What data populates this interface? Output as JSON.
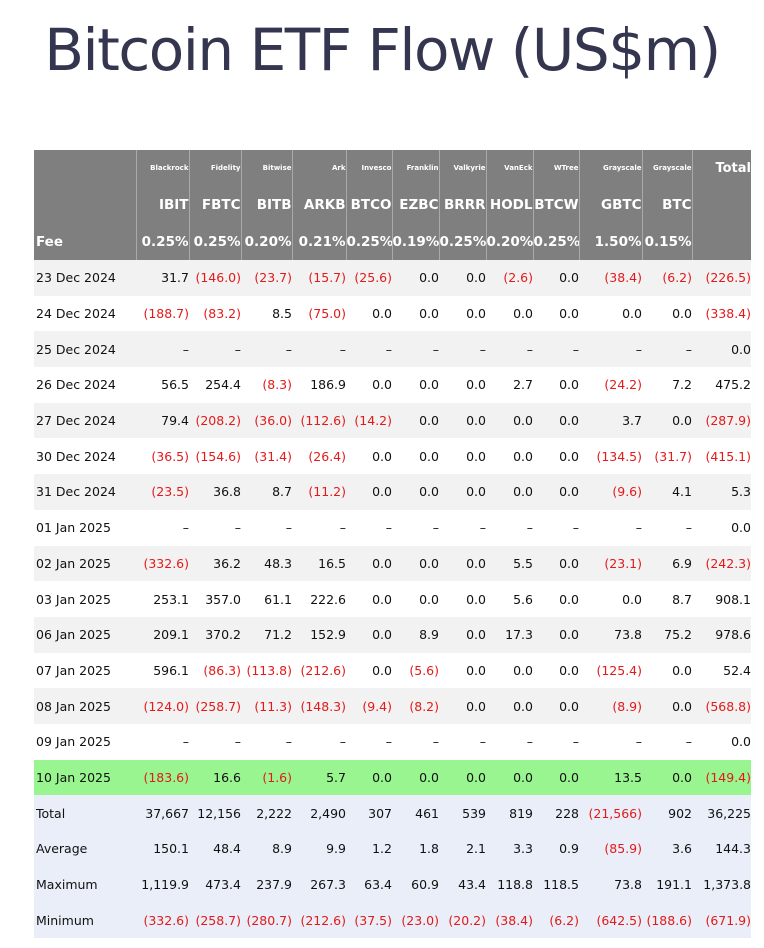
{
  "title": "Bitcoin ETF Flow (US$m)",
  "header": {
    "issuers": [
      "Blackrock",
      "Fidelity",
      "Bitwise",
      "Ark",
      "Invesco",
      "Franklin",
      "Valkyrie",
      "VanEck",
      "WTree",
      "Grayscale",
      "Grayscale"
    ],
    "total_label": "Total",
    "tickers": [
      "IBIT",
      "FBTC",
      "BITB",
      "ARKB",
      "BTCO",
      "EZBC",
      "BRRR",
      "HODL",
      "BTCW",
      "GBTC",
      "BTC"
    ],
    "fee_label": "Fee",
    "fees": [
      "0.25%",
      "0.25%",
      "0.20%",
      "0.21%",
      "0.25%",
      "0.19%",
      "0.25%",
      "0.20%",
      "0.25%",
      "1.50%",
      "0.15%"
    ]
  },
  "rows": [
    {
      "date": "23 Dec 2024",
      "values": [
        "31.7",
        "(146.0)",
        "(23.7)",
        "(15.7)",
        "(25.6)",
        "0.0",
        "0.0",
        "(2.6)",
        "0.0",
        "(38.4)",
        "(6.2)",
        "(226.5)"
      ]
    },
    {
      "date": "24 Dec 2024",
      "values": [
        "(188.7)",
        "(83.2)",
        "8.5",
        "(75.0)",
        "0.0",
        "0.0",
        "0.0",
        "0.0",
        "0.0",
        "0.0",
        "0.0",
        "(338.4)"
      ]
    },
    {
      "date": "25 Dec 2024",
      "values": [
        "–",
        "–",
        "–",
        "–",
        "–",
        "–",
        "–",
        "–",
        "–",
        "–",
        "–",
        "0.0"
      ]
    },
    {
      "date": "26 Dec 2024",
      "values": [
        "56.5",
        "254.4",
        "(8.3)",
        "186.9",
        "0.0",
        "0.0",
        "0.0",
        "2.7",
        "0.0",
        "(24.2)",
        "7.2",
        "475.2"
      ]
    },
    {
      "date": "27 Dec 2024",
      "values": [
        "79.4",
        "(208.2)",
        "(36.0)",
        "(112.6)",
        "(14.2)",
        "0.0",
        "0.0",
        "0.0",
        "0.0",
        "3.7",
        "0.0",
        "(287.9)"
      ]
    },
    {
      "date": "30 Dec 2024",
      "values": [
        "(36.5)",
        "(154.6)",
        "(31.4)",
        "(26.4)",
        "0.0",
        "0.0",
        "0.0",
        "0.0",
        "0.0",
        "(134.5)",
        "(31.7)",
        "(415.1)"
      ]
    },
    {
      "date": "31 Dec 2024",
      "values": [
        "(23.5)",
        "36.8",
        "8.7",
        "(11.2)",
        "0.0",
        "0.0",
        "0.0",
        "0.0",
        "0.0",
        "(9.6)",
        "4.1",
        "5.3"
      ]
    },
    {
      "date": "01 Jan 2025",
      "values": [
        "–",
        "–",
        "–",
        "–",
        "–",
        "–",
        "–",
        "–",
        "–",
        "–",
        "–",
        "0.0"
      ]
    },
    {
      "date": "02 Jan 2025",
      "values": [
        "(332.6)",
        "36.2",
        "48.3",
        "16.5",
        "0.0",
        "0.0",
        "0.0",
        "5.5",
        "0.0",
        "(23.1)",
        "6.9",
        "(242.3)"
      ]
    },
    {
      "date": "03 Jan 2025",
      "values": [
        "253.1",
        "357.0",
        "61.1",
        "222.6",
        "0.0",
        "0.0",
        "0.0",
        "5.6",
        "0.0",
        "0.0",
        "8.7",
        "908.1"
      ]
    },
    {
      "date": "06 Jan 2025",
      "values": [
        "209.1",
        "370.2",
        "71.2",
        "152.9",
        "0.0",
        "8.9",
        "0.0",
        "17.3",
        "0.0",
        "73.8",
        "75.2",
        "978.6"
      ]
    },
    {
      "date": "07 Jan 2025",
      "values": [
        "596.1",
        "(86.3)",
        "(113.8)",
        "(212.6)",
        "0.0",
        "(5.6)",
        "0.0",
        "0.0",
        "0.0",
        "(125.4)",
        "0.0",
        "52.4"
      ]
    },
    {
      "date": "08 Jan 2025",
      "values": [
        "(124.0)",
        "(258.7)",
        "(11.3)",
        "(148.3)",
        "(9.4)",
        "(8.2)",
        "0.0",
        "0.0",
        "0.0",
        "(8.9)",
        "0.0",
        "(568.8)"
      ]
    },
    {
      "date": "09 Jan 2025",
      "values": [
        "–",
        "–",
        "–",
        "–",
        "–",
        "–",
        "–",
        "–",
        "–",
        "–",
        "–",
        "0.0"
      ]
    },
    {
      "date": "10 Jan 2025",
      "values": [
        "(183.6)",
        "16.6",
        "(1.6)",
        "5.7",
        "0.0",
        "0.0",
        "0.0",
        "0.0",
        "0.0",
        "13.5",
        "0.0",
        "(149.4)"
      ],
      "highlight": true
    }
  ],
  "summary": [
    {
      "label": "Total",
      "values": [
        "37,667",
        "12,156",
        "2,222",
        "2,490",
        "307",
        "461",
        "539",
        "819",
        "228",
        "(21,566)",
        "902",
        "36,225"
      ]
    },
    {
      "label": "Average",
      "values": [
        "150.1",
        "48.4",
        "8.9",
        "9.9",
        "1.2",
        "1.8",
        "2.1",
        "3.3",
        "0.9",
        "(85.9)",
        "3.6",
        "144.3"
      ]
    },
    {
      "label": "Maximum",
      "values": [
        "1,119.9",
        "473.4",
        "237.9",
        "267.3",
        "63.4",
        "60.9",
        "43.4",
        "118.8",
        "118.5",
        "73.8",
        "191.1",
        "1,373.8"
      ]
    },
    {
      "label": "Minimum",
      "values": [
        "(332.6)",
        "(258.7)",
        "(280.7)",
        "(212.6)",
        "(37.5)",
        "(23.0)",
        "(20.2)",
        "(38.4)",
        "(6.2)",
        "(642.5)",
        "(188.6)",
        "(671.9)"
      ]
    }
  ],
  "colors": {
    "header_bg": "#7f7f7f",
    "negative": "#e31a1a",
    "highlight_row": "#98f58f",
    "summary_bg": "#e9eef8",
    "title": "#34354f"
  }
}
